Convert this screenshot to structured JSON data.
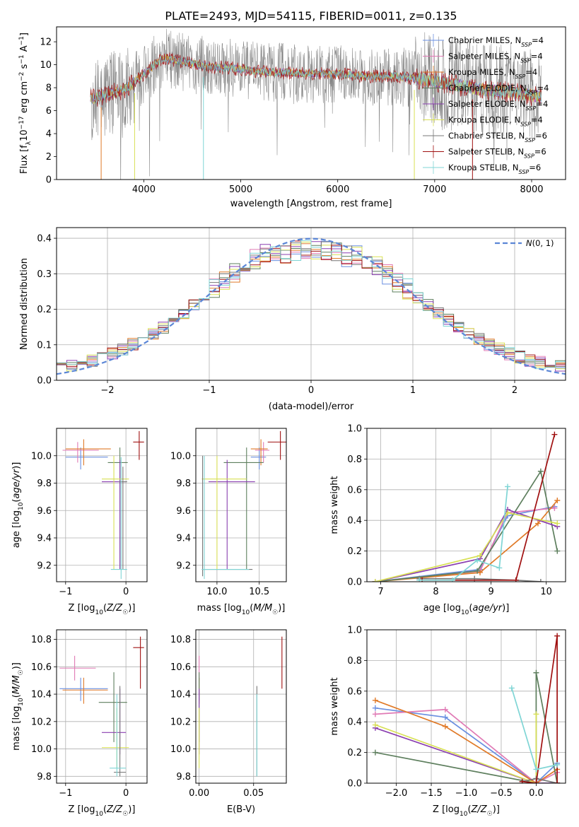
{
  "figure": {
    "title": "PLATE=2493, MJD=54115, FIBERID=0011, z=0.135"
  },
  "colors": {
    "c0": "#6a8fe0",
    "c1": "#e07ab5",
    "c2": "#e07a28",
    "c3": "#5e7f5e",
    "c4": "#8a3fb0",
    "c5": "#d8e055",
    "c6": "#777777",
    "c7": "#a01010",
    "c8": "#7fd5d5"
  },
  "chart_data": [
    {
      "id": "spectrum",
      "type": "line",
      "xlabel": "wavelength [Angstrom, rest frame]",
      "ylabel": "Flux [f_λ10^-17 erg cm^-2 s^-1 A^-1]",
      "xlim": [
        3100,
        8350
      ],
      "ylim": [
        0,
        13.3
      ],
      "xticks": [
        4000,
        5000,
        6000,
        7000,
        8000
      ],
      "yticks": [
        0,
        2,
        4,
        6,
        8,
        10,
        12
      ],
      "grid": false,
      "legend_position": "top-right",
      "wavelength_range": [
        3450,
        8100
      ],
      "anchor_wavelength": [
        3450,
        3600,
        3800,
        4000,
        4200,
        4500,
        4700,
        4900,
        5200,
        5500,
        5800,
        6000,
        6300,
        6600,
        6900,
        7200,
        7500,
        7800,
        8100
      ],
      "anchor_flux": [
        7.0,
        7.4,
        7.8,
        9.2,
        10.6,
        10.1,
        9.8,
        9.7,
        9.4,
        9.3,
        9.2,
        9.2,
        9.0,
        9.0,
        8.7,
        8.3,
        7.8,
        7.6,
        7.2
      ],
      "series": [
        {
          "name": "Chabrier MILES, N_SSP=4",
          "color": "#6a8fe0"
        },
        {
          "name": "Salpeter MILES, N_SSP=4",
          "color": "#e07ab5"
        },
        {
          "name": "Kroupa MILES, N_SSP=4",
          "color": "#e07a28"
        },
        {
          "name": "Chabrier ELODIE, N_SSP=4",
          "color": "#5e7f5e"
        },
        {
          "name": "Salpeter ELODIE, N_SSP=4",
          "color": "#8a3fb0"
        },
        {
          "name": "Kroupa ELODIE, N_SSP=4",
          "color": "#d8e055"
        },
        {
          "name": "Chabrier STELIB, N_SSP=6",
          "color": "#777777"
        },
        {
          "name": "Salpeter STELIB, N_SSP=6",
          "color": "#a01010"
        },
        {
          "name": "Kroupa STELIB, N_SSP=6",
          "color": "#7fd5d5"
        }
      ]
    },
    {
      "id": "residuals",
      "type": "line",
      "xlabel": "(data-model)/error",
      "ylabel": "Normed distribution",
      "xlim": [
        -2.5,
        2.5
      ],
      "ylim": [
        0,
        0.43
      ],
      "xticks": [
        -2,
        -1,
        0,
        1,
        2
      ],
      "yticks": [
        0.0,
        0.1,
        0.2,
        0.3,
        0.4
      ],
      "grid": true,
      "legend_position": "top-right",
      "legend": "N(0,1)",
      "bin_edges_start": -2.5,
      "bin_width": 0.1
    },
    {
      "id": "age_vs_Z",
      "type": "scatter",
      "xlabel": "Z [log10(Z/Z☉)]",
      "ylabel": "age [log10(age/yr)]",
      "xlim": [
        -1.15,
        0.35
      ],
      "ylim": [
        9.08,
        10.2
      ],
      "xticks": [
        -1,
        0
      ],
      "yticks": [
        9.2,
        9.4,
        9.6,
        9.8,
        10.0
      ],
      "grid": true,
      "points": [
        {
          "series": 0,
          "x": -0.75,
          "y": 9.99,
          "xlo": -1.0,
          "xhi": -0.3,
          "ylo": 9.9,
          "yhi": 10.06
        },
        {
          "series": 1,
          "x": -0.8,
          "y": 10.04,
          "xlo": -1.05,
          "xhi": -0.45,
          "ylo": 9.95,
          "yhi": 10.1
        },
        {
          "series": 2,
          "x": -0.7,
          "y": 10.05,
          "xlo": -1.0,
          "xhi": -0.25,
          "ylo": 9.93,
          "yhi": 10.12
        },
        {
          "series": 3,
          "x": -0.1,
          "y": 9.95,
          "xlo": -0.3,
          "xhi": 0.03,
          "ylo": 9.17,
          "yhi": 10.06
        },
        {
          "series": 4,
          "x": -0.1,
          "y": 9.81,
          "xlo": -0.4,
          "xhi": 0.0,
          "ylo": 9.17,
          "yhi": 9.97
        },
        {
          "series": 5,
          "x": -0.2,
          "y": 9.83,
          "xlo": -0.4,
          "xhi": 0.05,
          "ylo": 9.17,
          "yhi": 10.0
        },
        {
          "series": 6,
          "x": -0.05,
          "y": 9.81,
          "xlo": -0.12,
          "xhi": 0.02,
          "ylo": 9.17,
          "yhi": 9.92
        },
        {
          "series": 7,
          "x": 0.22,
          "y": 10.1,
          "xlo": 0.12,
          "xhi": 0.3,
          "ylo": 9.97,
          "yhi": 10.18
        },
        {
          "series": 8,
          "x": -0.08,
          "y": 9.17,
          "xlo": -0.25,
          "xhi": 0.02,
          "ylo": 9.1,
          "yhi": 9.99
        }
      ]
    },
    {
      "id": "age_vs_mass",
      "type": "scatter",
      "xlabel": "mass [log10(M/M☉)]",
      "ylabel": "",
      "xlim": [
        9.75,
        10.82
      ],
      "ylim": [
        9.08,
        10.2
      ],
      "xticks": [
        10.0,
        10.5
      ],
      "yticks": [
        9.2,
        9.4,
        9.6,
        9.8,
        10.0
      ],
      "grid": true,
      "points": [
        {
          "series": 0,
          "x": 10.5,
          "y": 9.99,
          "xlo": 10.4,
          "xhi": 10.58,
          "ylo": 9.9,
          "yhi": 10.06
        },
        {
          "series": 1,
          "x": 10.55,
          "y": 10.04,
          "xlo": 10.45,
          "xhi": 10.62,
          "ylo": 9.95,
          "yhi": 10.1
        },
        {
          "series": 2,
          "x": 10.52,
          "y": 10.05,
          "xlo": 10.4,
          "xhi": 10.6,
          "ylo": 9.93,
          "yhi": 10.12
        },
        {
          "series": 3,
          "x": 10.35,
          "y": 9.95,
          "xlo": 10.08,
          "xhi": 10.55,
          "ylo": 9.17,
          "yhi": 10.06
        },
        {
          "series": 4,
          "x": 10.12,
          "y": 9.81,
          "xlo": 9.9,
          "xhi": 10.45,
          "ylo": 9.17,
          "yhi": 9.97
        },
        {
          "series": 5,
          "x": 10.0,
          "y": 9.83,
          "xlo": 9.82,
          "xhi": 10.35,
          "ylo": 9.17,
          "yhi": 10.0
        },
        {
          "series": 6,
          "x": 9.83,
          "y": 9.17,
          "xlo": 9.82,
          "xhi": 10.42,
          "ylo": 9.12,
          "yhi": 10.0
        },
        {
          "series": 7,
          "x": 10.75,
          "y": 10.1,
          "xlo": 10.6,
          "xhi": 10.82,
          "ylo": 9.97,
          "yhi": 10.18
        },
        {
          "series": 8,
          "x": 9.85,
          "y": 9.17,
          "xlo": 9.82,
          "xhi": 10.38,
          "ylo": 9.1,
          "yhi": 10.0
        }
      ]
    },
    {
      "id": "weight_vs_age",
      "type": "line",
      "xlabel": "age [log10(age/yr)]",
      "ylabel": "mass weight",
      "xlim": [
        6.75,
        10.35
      ],
      "ylim": [
        0,
        1.0
      ],
      "xticks": [
        7,
        8,
        9,
        10
      ],
      "yticks": [
        0.0,
        0.2,
        0.4,
        0.6,
        0.8,
        1.0
      ],
      "grid": true,
      "series": [
        {
          "color": 0,
          "x": [
            6.9,
            8.8,
            9.3,
            10.15
          ],
          "y": [
            0.0,
            0.08,
            0.43,
            0.49
          ]
        },
        {
          "color": 1,
          "x": [
            6.9,
            8.8,
            9.3,
            10.15
          ],
          "y": [
            0.0,
            0.07,
            0.45,
            0.48
          ]
        },
        {
          "color": 2,
          "x": [
            6.9,
            8.8,
            9.85,
            10.2
          ],
          "y": [
            0.0,
            0.06,
            0.38,
            0.53
          ]
        },
        {
          "color": 3,
          "x": [
            6.9,
            8.75,
            9.9,
            10.2
          ],
          "y": [
            0.0,
            0.07,
            0.72,
            0.2
          ]
        },
        {
          "color": 4,
          "x": [
            6.9,
            8.8,
            9.3,
            10.2
          ],
          "y": [
            0.0,
            0.15,
            0.47,
            0.36
          ]
        },
        {
          "color": 5,
          "x": [
            6.9,
            8.8,
            9.3,
            10.2
          ],
          "y": [
            0.0,
            0.17,
            0.45,
            0.38
          ]
        },
        {
          "color": 6,
          "x": [
            7.7,
            8.7,
            9.45,
            9.9
          ],
          "y": [
            0.02,
            0.02,
            0.01,
            0.0
          ]
        },
        {
          "color": 7,
          "x": [
            7.75,
            9.45,
            10.15
          ],
          "y": [
            0.01,
            0.01,
            0.96
          ]
        },
        {
          "color": 8,
          "x": [
            7.7,
            8.3,
            8.75,
            9.15,
            9.3
          ],
          "y": [
            0.01,
            0.01,
            0.14,
            0.09,
            0.62
          ]
        }
      ]
    },
    {
      "id": "mass_vs_Z",
      "type": "scatter",
      "xlabel": "Z [log10(Z/Z☉)]",
      "ylabel": "mass [log10(M/M☉)]",
      "xlim": [
        -1.15,
        0.35
      ],
      "ylim": [
        9.75,
        10.87
      ],
      "xticks": [
        -1,
        0
      ],
      "yticks": [
        9.8,
        10.0,
        10.2,
        10.4,
        10.6,
        10.8
      ],
      "grid": true,
      "points": [
        {
          "series": 0,
          "x": -0.75,
          "y": 10.44,
          "xlo": -1.1,
          "xhi": -0.3,
          "ylo": 10.35,
          "yhi": 10.52
        },
        {
          "series": 1,
          "x": -0.85,
          "y": 10.59,
          "xlo": -1.1,
          "xhi": -0.5,
          "ylo": 10.5,
          "yhi": 10.68
        },
        {
          "series": 2,
          "x": -0.7,
          "y": 10.43,
          "xlo": -1.05,
          "xhi": -0.3,
          "ylo": 10.33,
          "yhi": 10.52
        },
        {
          "series": 3,
          "x": -0.2,
          "y": 10.34,
          "xlo": -0.45,
          "xhi": 0.02,
          "ylo": 10.05,
          "yhi": 10.56
        },
        {
          "series": 4,
          "x": -0.1,
          "y": 10.12,
          "xlo": -0.4,
          "xhi": 0.0,
          "ylo": 9.96,
          "yhi": 10.44
        },
        {
          "series": 5,
          "x": -0.15,
          "y": 10.01,
          "xlo": -0.4,
          "xhi": 0.05,
          "ylo": 9.86,
          "yhi": 10.3
        },
        {
          "series": 6,
          "x": -0.1,
          "y": 9.83,
          "xlo": -0.2,
          "xhi": 0.0,
          "ylo": 9.8,
          "yhi": 10.46
        },
        {
          "series": 7,
          "x": 0.24,
          "y": 10.74,
          "xlo": 0.12,
          "xhi": 0.3,
          "ylo": 10.44,
          "yhi": 10.82
        },
        {
          "series": 8,
          "x": -0.15,
          "y": 9.86,
          "xlo": -0.27,
          "xhi": 0.0,
          "ylo": 9.8,
          "yhi": 10.4
        }
      ]
    },
    {
      "id": "mass_vs_ebv",
      "type": "scatter",
      "xlabel": "E(B-V)",
      "ylabel": "",
      "xlim": [
        -0.003,
        0.08
      ],
      "ylim": [
        9.75,
        10.87
      ],
      "xticks": [
        0.0,
        0.05
      ],
      "xtick_labels": [
        "0.00",
        "0.05"
      ],
      "yticks": [
        9.8,
        10.0,
        10.2,
        10.4,
        10.6,
        10.8
      ],
      "grid": true,
      "points": [
        {
          "series": 0,
          "x": 0.0,
          "y": 10.44,
          "ylo": 10.35,
          "yhi": 10.52
        },
        {
          "series": 1,
          "x": 0.0,
          "y": 10.59,
          "ylo": 10.5,
          "yhi": 10.68
        },
        {
          "series": 2,
          "x": 0.0,
          "y": 10.43,
          "ylo": 10.33,
          "yhi": 10.52
        },
        {
          "series": 3,
          "x": 0.0,
          "y": 10.34,
          "ylo": 10.05,
          "yhi": 10.56
        },
        {
          "series": 4,
          "x": 0.0,
          "y": 10.12,
          "ylo": 9.96,
          "yhi": 10.44
        },
        {
          "series": 5,
          "x": 0.0,
          "y": 10.01,
          "ylo": 9.86,
          "yhi": 10.3
        },
        {
          "series": 6,
          "x": 0.053,
          "y": 10.1,
          "ylo": 9.8,
          "yhi": 10.46
        },
        {
          "series": 7,
          "x": 0.076,
          "y": 10.64,
          "ylo": 10.44,
          "yhi": 10.82
        },
        {
          "series": 8,
          "x": 0.053,
          "y": 10.1,
          "ylo": 9.8,
          "yhi": 10.4
        }
      ]
    },
    {
      "id": "weight_vs_Z",
      "type": "line",
      "xlabel": "Z [log10(Z/Z☉)]",
      "ylabel": "mass weight",
      "xlim": [
        -2.42,
        0.42
      ],
      "ylim": [
        0,
        1.0
      ],
      "xticks": [
        -2.0,
        -1.5,
        -1.0,
        -0.5,
        0.0
      ],
      "yticks": [
        0.0,
        0.2,
        0.4,
        0.6,
        0.8,
        1.0
      ],
      "grid": true,
      "series": [
        {
          "color": 0,
          "x": [
            -2.3,
            -1.3,
            0.0,
            0.3
          ],
          "y": [
            0.49,
            0.43,
            0.0,
            0.13
          ]
        },
        {
          "color": 1,
          "x": [
            -2.3,
            -1.3,
            0.0,
            0.3
          ],
          "y": [
            0.45,
            0.48,
            0.0,
            0.07
          ]
        },
        {
          "color": 2,
          "x": [
            -2.3,
            -1.3,
            0.0,
            0.3
          ],
          "y": [
            0.54,
            0.37,
            0.0,
            0.09
          ]
        },
        {
          "color": 3,
          "x": [
            -2.3,
            0.0,
            0.0,
            0.3
          ],
          "y": [
            0.2,
            0.0,
            0.72,
            0.0
          ]
        },
        {
          "color": 4,
          "x": [
            -2.3,
            0.0,
            0.3
          ],
          "y": [
            0.36,
            0.0,
            0.0
          ]
        },
        {
          "color": 5,
          "x": [
            -2.3,
            0.0,
            0.0
          ],
          "y": [
            0.38,
            0.0,
            0.45
          ]
        },
        {
          "color": 6,
          "x": [
            -0.2,
            0.0,
            0.3
          ],
          "y": [
            0.01,
            0.03,
            0.0
          ]
        },
        {
          "color": 7,
          "x": [
            -0.2,
            0.0,
            0.3,
            0.3
          ],
          "y": [
            0.01,
            0.0,
            0.96,
            0.0
          ]
        },
        {
          "color": 8,
          "x": [
            -0.35,
            0.0,
            0.3
          ],
          "y": [
            0.62,
            0.09,
            0.12
          ]
        }
      ]
    }
  ]
}
